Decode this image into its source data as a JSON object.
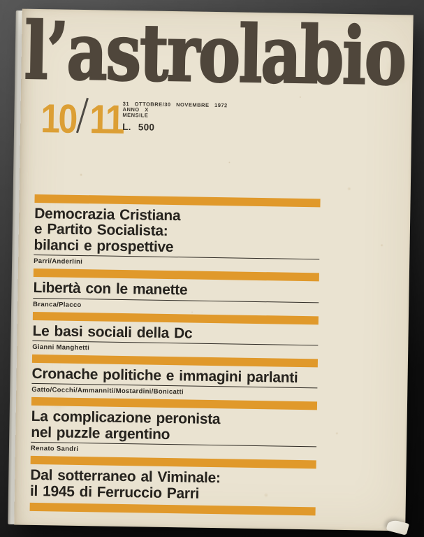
{
  "photo": {
    "backdrop": {
      "top_color": "#505050",
      "bottom_color": "#0a0a0a"
    }
  },
  "cover": {
    "masthead": "l’astrolabio",
    "issue": {
      "first": "10",
      "second": "11"
    },
    "pub_info": {
      "date_line": "31 OTTOBRE/30 NOVEMBRE 1972",
      "year_line": "ANNO X",
      "frequency_line": "MENSILE",
      "price_line": "L. 500"
    },
    "colors": {
      "accent_orange": "#e0992b",
      "numeral_orange": "#dc9f35",
      "paper": "#eae3d1",
      "title_ink": "#26231e",
      "masthead_ink": "#4f463b"
    },
    "articles": [
      {
        "title_lines": [
          "Democrazia Cristiana",
          "e Partito Socialista:",
          "bilanci e prospettive"
        ],
        "authors": "Parri/Anderlini"
      },
      {
        "title_lines": [
          "Libertà con le manette"
        ],
        "authors": "Branca/Placco"
      },
      {
        "title_lines": [
          "Le basi sociali della Dc"
        ],
        "authors": "Gianni Manghetti"
      },
      {
        "title_lines": [
          "Cronache politiche e immagini parlanti"
        ],
        "authors": "Gatto/Cocchi/Ammanniti/Mostardini/Bonicatti"
      },
      {
        "title_lines": [
          "La complicazione peronista",
          "nel puzzle argentino"
        ],
        "authors": "Renato Sandri"
      },
      {
        "title_lines": [
          "Dal sotterraneo al Viminale:",
          "il 1945 di Ferruccio Parri"
        ],
        "authors": ""
      }
    ]
  }
}
